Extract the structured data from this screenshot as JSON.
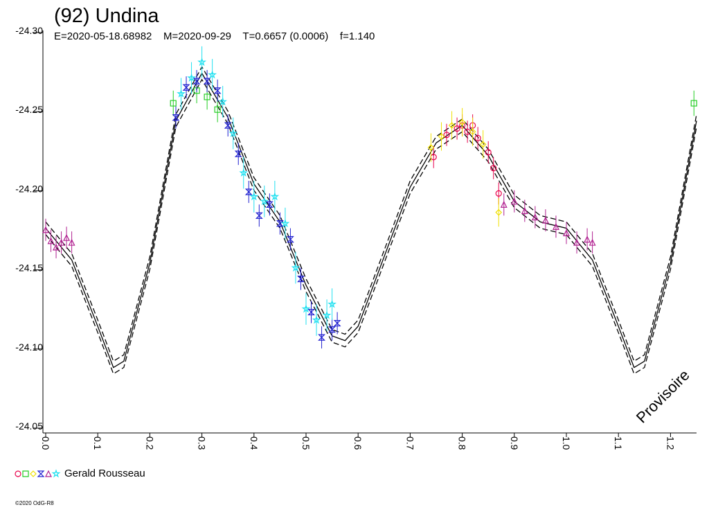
{
  "chart_data": {
    "type": "scatter",
    "title": "(92) Undina",
    "subtitle": "E=2020-05-18.68982    M=2020-09-29    T=0.6657 (0.0006)    f=1.140",
    "watermark": "Provisoire",
    "footer": "©2020 OdG-R8",
    "legend": {
      "label": "Gerald Rousseau"
    },
    "xlim": [
      0,
      1.25
    ],
    "ylim": [
      -24.3,
      -24.05
    ],
    "y_reversed": true,
    "xticks": [
      {
        "value": 0,
        "label": "0.0"
      },
      0.1,
      0.2,
      0.3,
      0.4,
      0.5,
      0.6,
      0.7,
      0.8,
      0.9,
      {
        "value": 1,
        "label": "1.0"
      },
      1.1,
      1.2
    ],
    "yticks": [
      {
        "value": -24.3,
        "label": "-24.30"
      },
      -24.25,
      {
        "value": -24.2,
        "label": "-24.20"
      },
      -24.15,
      {
        "value": -24.1,
        "label": "-24.10"
      },
      -24.05
    ],
    "model_x": [
      0,
      0.05,
      0.1,
      0.13,
      0.15,
      0.2,
      0.25,
      0.3,
      0.35,
      0.4,
      0.45,
      0.5,
      0.55,
      0.575,
      0.6,
      0.65,
      0.7,
      0.75,
      0.8,
      0.85,
      0.9,
      0.95,
      1.0,
      1.05,
      1.1,
      1.13,
      1.15,
      1.2,
      1.25
    ],
    "model_curves": [
      {
        "dashed": false,
        "values": [
          -24.175,
          -24.155,
          -24.113,
          -24.087,
          -24.091,
          -24.153,
          -24.243,
          -24.273,
          -24.245,
          -24.203,
          -24.179,
          -24.139,
          -24.107,
          -24.104,
          -24.113,
          -24.157,
          -24.201,
          -24.229,
          -24.24,
          -24.221,
          -24.192,
          -24.179,
          -24.175,
          -24.155,
          -24.113,
          -24.087,
          -24.091,
          -24.153,
          -24.243
        ]
      },
      {
        "dashed": true,
        "values": [
          -24.179,
          -24.159,
          -24.117,
          -24.091,
          -24.095,
          -24.157,
          -24.247,
          -24.277,
          -24.249,
          -24.207,
          -24.183,
          -24.143,
          -24.111,
          -24.108,
          -24.117,
          -24.161,
          -24.205,
          -24.233,
          -24.244,
          -24.225,
          -24.196,
          -24.183,
          -24.179,
          -24.159,
          -24.117,
          -24.091,
          -24.095,
          -24.157,
          -24.247
        ]
      },
      {
        "dashed": true,
        "values": [
          -24.171,
          -24.151,
          -24.109,
          -24.083,
          -24.087,
          -24.149,
          -24.239,
          -24.269,
          -24.241,
          -24.199,
          -24.175,
          -24.135,
          -24.103,
          -24.1,
          -24.109,
          -24.153,
          -24.197,
          -24.225,
          -24.236,
          -24.217,
          -24.188,
          -24.175,
          -24.171,
          -24.151,
          -24.109,
          -24.083,
          -24.087,
          -24.149,
          -24.239
        ]
      }
    ],
    "series": [
      {
        "marker": "circle",
        "color": "#e8004a",
        "error": 0.007,
        "x": [
          0.745,
          0.77,
          0.79,
          0.8,
          0.81,
          0.82,
          0.83,
          0.85,
          0.86,
          0.87
        ],
        "values": [
          -24.22,
          -24.234,
          -24.238,
          -24.24,
          -24.236,
          -24.24,
          -24.232,
          -24.223,
          -24.213,
          -24.197
        ]
      },
      {
        "marker": "square",
        "color": "#22cc22",
        "error": 0.008,
        "x": [
          0.245,
          0.29,
          0.31,
          0.33,
          1.245
        ],
        "values": [
          -24.254,
          -24.262,
          -24.258,
          -24.25,
          -24.254
        ]
      },
      {
        "marker": "diamond",
        "color": "#f0e000",
        "error": 0.009,
        "x": [
          0.74,
          0.76,
          0.78,
          0.8,
          0.82,
          0.84,
          0.87
        ],
        "values": [
          -24.226,
          -24.233,
          -24.24,
          -24.242,
          -24.236,
          -24.228,
          -24.185
        ]
      },
      {
        "marker": "bowtie",
        "color": "#2020d0",
        "error": 0.007,
        "x": [
          0.25,
          0.27,
          0.29,
          0.31,
          0.33,
          0.35,
          0.37,
          0.39,
          0.41,
          0.43,
          0.45,
          0.47,
          0.49,
          0.51,
          0.53,
          0.55,
          0.56
        ],
        "values": [
          -24.245,
          -24.264,
          -24.268,
          -24.268,
          -24.262,
          -24.24,
          -24.222,
          -24.198,
          -24.183,
          -24.19,
          -24.178,
          -24.168,
          -24.143,
          -24.122,
          -24.106,
          -24.111,
          -24.115
        ]
      },
      {
        "marker": "triangle",
        "color": "#b02090",
        "error": 0.007,
        "x": [
          0.0,
          0.01,
          0.02,
          0.03,
          0.04,
          0.05,
          0.88,
          0.9,
          0.92,
          0.94,
          0.96,
          0.98,
          1.0,
          1.02,
          1.04,
          1.05
        ],
        "values": [
          -24.174,
          -24.167,
          -24.163,
          -24.166,
          -24.169,
          -24.166,
          -24.19,
          -24.192,
          -24.186,
          -24.182,
          -24.18,
          -24.176,
          -24.172,
          -24.166,
          -24.168,
          -24.166
        ]
      },
      {
        "marker": "star",
        "color": "#20e0f0",
        "error": 0.01,
        "x": [
          0.26,
          0.28,
          0.3,
          0.32,
          0.34,
          0.36,
          0.38,
          0.4,
          0.42,
          0.44,
          0.46,
          0.48,
          0.5,
          0.52,
          0.54,
          0.55
        ],
        "values": [
          -24.26,
          -24.27,
          -24.28,
          -24.272,
          -24.255,
          -24.235,
          -24.21,
          -24.195,
          -24.192,
          -24.195,
          -24.178,
          -24.15,
          -24.124,
          -24.117,
          -24.12,
          -24.127
        ]
      }
    ]
  }
}
